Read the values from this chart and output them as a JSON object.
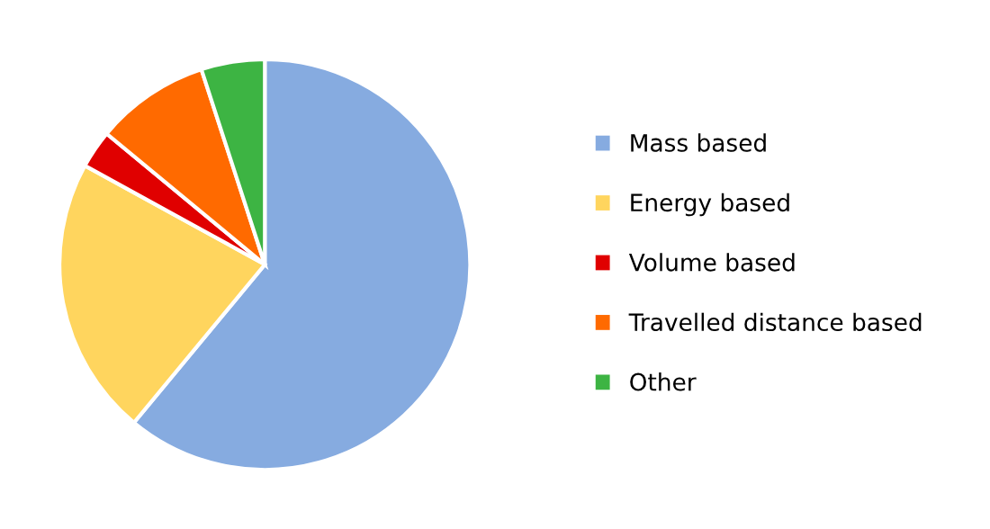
{
  "chart_data": {
    "type": "pie",
    "categories": [
      "Mass based",
      "Energy based",
      "Volume based",
      "Travelled distance based",
      "Other"
    ],
    "values": [
      61,
      22,
      3,
      9,
      5
    ],
    "colors": [
      "#86abe0",
      "#ffd55e",
      "#e00000",
      "#ff6a00",
      "#3db443"
    ],
    "legend": "right"
  }
}
